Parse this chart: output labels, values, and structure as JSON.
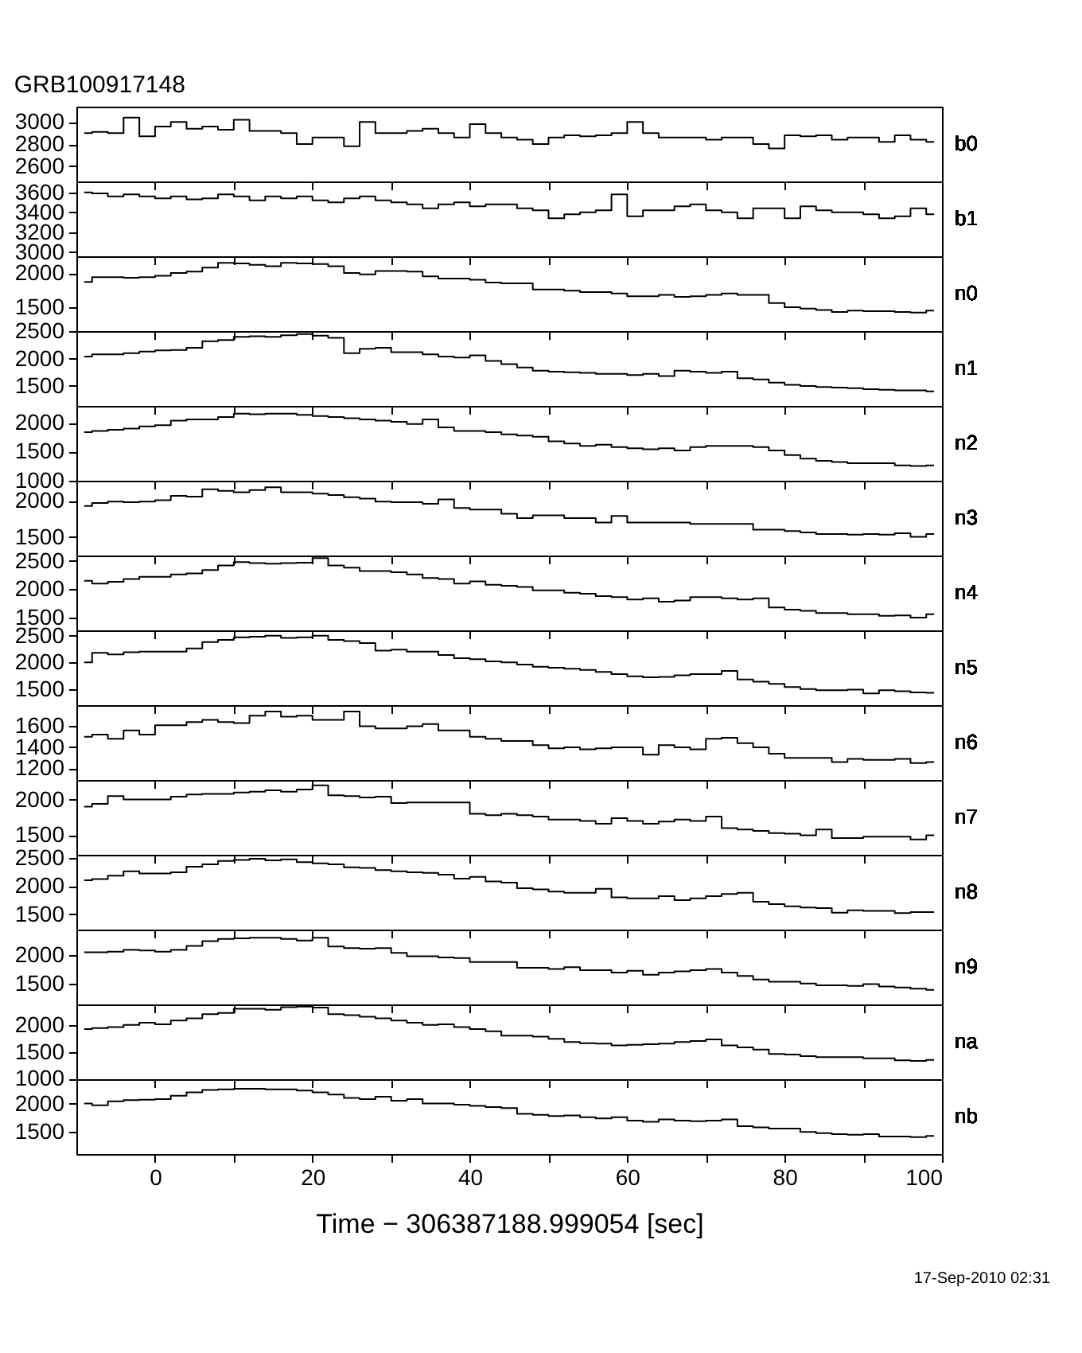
{
  "chart_data": [
    {
      "type": "step",
      "title": "GRB100917148",
      "x": [
        -9,
        -7,
        -5,
        -3,
        -1,
        1,
        3,
        5,
        7,
        9,
        11,
        13,
        15,
        17,
        19,
        21,
        23,
        25,
        27,
        29,
        31,
        33,
        35,
        37,
        39,
        41,
        43,
        45,
        47,
        49,
        51,
        53,
        55,
        57,
        59,
        61,
        63,
        65,
        67,
        69,
        71,
        73,
        75,
        77,
        79,
        81,
        83,
        85,
        87,
        89,
        91,
        93,
        95,
        97,
        99
      ],
      "xlim": [
        -10,
        100
      ],
      "xticks": [
        0,
        {
          "value": 10,
          "label": null
        },
        20,
        {
          "value": 30,
          "label": null
        },
        40,
        {
          "value": 50,
          "label": null
        },
        60,
        {
          "value": 70,
          "label": null
        },
        80,
        {
          "value": 90,
          "label": null
        },
        100
      ],
      "ylim": [
        2460,
        3140
      ],
      "yticks": [
        2600,
        2800,
        3000
      ],
      "tick_labels": "y",
      "series": [
        {
          "name": "b0",
          "color": "#000000",
          "values": [
            2900,
            2910,
            2900,
            3040,
            2870,
            2960,
            3000,
            2940,
            2960,
            2930,
            3020,
            2920,
            2920,
            2900,
            2800,
            2860,
            2860,
            2780,
            3000,
            2900,
            2900,
            2920,
            2940,
            2900,
            2860,
            2980,
            2900,
            2860,
            2840,
            2800,
            2860,
            2880,
            2870,
            2880,
            2900,
            3000,
            2900,
            2860,
            2860,
            2860,
            2840,
            2860,
            2860,
            2800,
            2760,
            2880,
            2870,
            2880,
            2840,
            2860,
            2860,
            2820,
            2880,
            2840,
            2820
          ]
        }
      ]
    },
    {
      "type": "step",
      "x": [
        -9,
        -7,
        -5,
        -3,
        -1,
        1,
        3,
        5,
        7,
        9,
        11,
        13,
        15,
        17,
        19,
        21,
        23,
        25,
        27,
        29,
        31,
        33,
        35,
        37,
        39,
        41,
        43,
        45,
        47,
        49,
        51,
        53,
        55,
        57,
        59,
        61,
        63,
        65,
        67,
        69,
        71,
        73,
        75,
        77,
        79,
        81,
        83,
        85,
        87,
        89,
        91,
        93,
        95,
        97,
        99
      ],
      "xlim": [
        -10,
        100
      ],
      "xticks": [
        0,
        {
          "value": 10,
          "label": null
        },
        20,
        {
          "value": 30,
          "label": null
        },
        40,
        {
          "value": 50,
          "label": null
        },
        60,
        {
          "value": 70,
          "label": null
        },
        80,
        {
          "value": 90,
          "label": null
        },
        100
      ],
      "ylim": [
        2960,
        3710
      ],
      "yticks": [
        3000,
        3200,
        3400,
        3600
      ],
      "tick_labels": "y",
      "series": [
        {
          "name": "b1",
          "color": "#000000",
          "values": [
            3600,
            3590,
            3560,
            3580,
            3560,
            3540,
            3560,
            3530,
            3540,
            3580,
            3560,
            3520,
            3560,
            3540,
            3560,
            3520,
            3500,
            3540,
            3560,
            3520,
            3500,
            3480,
            3440,
            3480,
            3500,
            3460,
            3480,
            3480,
            3440,
            3420,
            3340,
            3380,
            3400,
            3420,
            3580,
            3360,
            3420,
            3420,
            3460,
            3480,
            3420,
            3400,
            3340,
            3440,
            3440,
            3340,
            3460,
            3420,
            3400,
            3400,
            3380,
            3340,
            3360,
            3440,
            3380
          ]
        }
      ]
    },
    {
      "type": "step",
      "x": [
        -9,
        -7,
        -5,
        -3,
        -1,
        1,
        3,
        5,
        7,
        9,
        11,
        13,
        15,
        17,
        19,
        21,
        23,
        25,
        27,
        29,
        31,
        33,
        35,
        37,
        39,
        41,
        43,
        45,
        47,
        49,
        51,
        53,
        55,
        57,
        59,
        61,
        63,
        65,
        67,
        69,
        71,
        73,
        75,
        77,
        79,
        81,
        83,
        85,
        87,
        89,
        91,
        93,
        95,
        97,
        99
      ],
      "xlim": [
        -10,
        100
      ],
      "xticks": [
        0,
        {
          "value": 10,
          "label": null
        },
        20,
        {
          "value": 30,
          "label": null
        },
        40,
        {
          "value": 50,
          "label": null
        },
        60,
        {
          "value": 70,
          "label": null
        },
        80,
        {
          "value": 90,
          "label": null
        },
        100
      ],
      "ylim": [
        1150,
        2245
      ],
      "yticks": [
        1500,
        2000
      ],
      "tick_labels": "y",
      "series": [
        {
          "name": "n0",
          "color": "#000000",
          "values": [
            1870,
            1940,
            1940,
            1930,
            1940,
            1960,
            2000,
            2020,
            2080,
            2150,
            2140,
            2120,
            2100,
            2150,
            2140,
            2130,
            2100,
            2000,
            1980,
            2030,
            2030,
            2020,
            1950,
            1920,
            1920,
            1900,
            1860,
            1850,
            1850,
            1760,
            1760,
            1740,
            1720,
            1720,
            1700,
            1660,
            1660,
            1680,
            1650,
            1660,
            1680,
            1700,
            1680,
            1680,
            1560,
            1500,
            1480,
            1460,
            1430,
            1450,
            1440,
            1440,
            1430,
            1420,
            1450
          ]
        }
      ]
    },
    {
      "type": "step",
      "x": [
        -9,
        -7,
        -5,
        -3,
        -1,
        1,
        3,
        5,
        7,
        9,
        11,
        13,
        15,
        17,
        19,
        21,
        23,
        25,
        27,
        29,
        31,
        33,
        35,
        37,
        39,
        41,
        43,
        45,
        47,
        49,
        51,
        53,
        55,
        57,
        59,
        61,
        63,
        65,
        67,
        69,
        71,
        73,
        75,
        77,
        79,
        81,
        83,
        85,
        87,
        89,
        91,
        93,
        95,
        97,
        99
      ],
      "xlim": [
        -10,
        100
      ],
      "xticks": [
        0,
        {
          "value": 10,
          "label": null
        },
        20,
        {
          "value": 30,
          "label": null
        },
        40,
        {
          "value": 50,
          "label": null
        },
        60,
        {
          "value": 70,
          "label": null
        },
        80,
        {
          "value": 90,
          "label": null
        },
        100
      ],
      "ylim": [
        1135,
        2505
      ],
      "yticks": [
        1500,
        2000,
        2500
      ],
      "tick_labels": "y",
      "series": [
        {
          "name": "n1",
          "color": "#000000",
          "values": [
            2040,
            2080,
            2080,
            2100,
            2130,
            2150,
            2160,
            2200,
            2320,
            2340,
            2400,
            2410,
            2400,
            2430,
            2450,
            2420,
            2380,
            2100,
            2180,
            2200,
            2120,
            2120,
            2080,
            2040,
            2020,
            2060,
            1960,
            1900,
            1840,
            1780,
            1760,
            1750,
            1740,
            1720,
            1720,
            1700,
            1720,
            1680,
            1780,
            1760,
            1740,
            1760,
            1640,
            1620,
            1560,
            1520,
            1500,
            1480,
            1470,
            1460,
            1440,
            1430,
            1420,
            1420,
            1400
          ]
        }
      ]
    },
    {
      "type": "step",
      "x": [
        -9,
        -7,
        -5,
        -3,
        -1,
        1,
        3,
        5,
        7,
        9,
        11,
        13,
        15,
        17,
        19,
        21,
        23,
        25,
        27,
        29,
        31,
        33,
        35,
        37,
        39,
        41,
        43,
        45,
        47,
        49,
        51,
        53,
        55,
        57,
        59,
        61,
        63,
        65,
        67,
        69,
        71,
        73,
        75,
        77,
        79,
        81,
        83,
        85,
        87,
        89,
        91,
        93,
        95,
        97,
        99
      ],
      "xlim": [
        -10,
        100
      ],
      "xticks": [
        0,
        {
          "value": 10,
          "label": null
        },
        20,
        {
          "value": 30,
          "label": null
        },
        40,
        {
          "value": 50,
          "label": null
        },
        60,
        {
          "value": 70,
          "label": null
        },
        80,
        {
          "value": 90,
          "label": null
        },
        100
      ],
      "ylim": [
        995,
        2295
      ],
      "yticks": [
        1000,
        1500,
        2000
      ],
      "tick_labels": "y",
      "series": [
        {
          "name": "n2",
          "color": "#000000",
          "values": [
            1840,
            1860,
            1880,
            1900,
            1940,
            1960,
            2040,
            2060,
            2060,
            2100,
            2160,
            2150,
            2160,
            2160,
            2140,
            2120,
            2100,
            2080,
            2060,
            2040,
            2020,
            1980,
            2060,
            1920,
            1860,
            1860,
            1840,
            1800,
            1780,
            1760,
            1680,
            1640,
            1600,
            1620,
            1580,
            1560,
            1540,
            1560,
            1520,
            1580,
            1600,
            1600,
            1600,
            1580,
            1520,
            1440,
            1380,
            1340,
            1320,
            1300,
            1300,
            1300,
            1260,
            1250,
            1260
          ]
        }
      ]
    },
    {
      "type": "step",
      "x": [
        -9,
        -7,
        -5,
        -3,
        -1,
        1,
        3,
        5,
        7,
        9,
        11,
        13,
        15,
        17,
        19,
        21,
        23,
        25,
        27,
        29,
        31,
        33,
        35,
        37,
        39,
        41,
        43,
        45,
        47,
        49,
        51,
        53,
        55,
        57,
        59,
        61,
        63,
        65,
        67,
        69,
        71,
        73,
        75,
        77,
        79,
        81,
        83,
        85,
        87,
        89,
        91,
        93,
        95,
        97,
        99
      ],
      "xlim": [
        -10,
        100
      ],
      "xticks": [
        0,
        {
          "value": 10,
          "label": null
        },
        20,
        {
          "value": 30,
          "label": null
        },
        40,
        {
          "value": 50,
          "label": null
        },
        60,
        {
          "value": 70,
          "label": null
        },
        80,
        {
          "value": 90,
          "label": null
        },
        100
      ],
      "ylim": [
        1240,
        2280
      ],
      "yticks": [
        1500,
        2000
      ],
      "tick_labels": "y",
      "series": [
        {
          "name": "n3",
          "color": "#000000",
          "values": [
            1930,
            1970,
            1990,
            1980,
            1990,
            2010,
            2070,
            2060,
            2160,
            2140,
            2120,
            2150,
            2190,
            2120,
            2120,
            2100,
            2080,
            2050,
            2030,
            1990,
            1980,
            1980,
            1960,
            2020,
            1900,
            1880,
            1880,
            1820,
            1760,
            1800,
            1800,
            1760,
            1760,
            1700,
            1790,
            1700,
            1700,
            1700,
            1700,
            1680,
            1680,
            1680,
            1680,
            1600,
            1600,
            1580,
            1560,
            1540,
            1540,
            1530,
            1540,
            1530,
            1550,
            1500,
            1540
          ]
        }
      ]
    },
    {
      "type": "step",
      "x": [
        -9,
        -7,
        -5,
        -3,
        -1,
        1,
        3,
        5,
        7,
        9,
        11,
        13,
        15,
        17,
        19,
        21,
        23,
        25,
        27,
        29,
        31,
        33,
        35,
        37,
        39,
        41,
        43,
        45,
        47,
        49,
        51,
        53,
        55,
        57,
        59,
        61,
        63,
        65,
        67,
        69,
        71,
        73,
        75,
        77,
        79,
        81,
        83,
        85,
        87,
        89,
        91,
        93,
        95,
        97,
        99
      ],
      "xlim": [
        -10,
        100
      ],
      "xticks": [
        0,
        {
          "value": 10,
          "label": null
        },
        20,
        {
          "value": 30,
          "label": null
        },
        40,
        {
          "value": 50,
          "label": null
        },
        60,
        {
          "value": 70,
          "label": null
        },
        80,
        {
          "value": 90,
          "label": null
        },
        100
      ],
      "ylim": [
        1275,
        2595
      ],
      "yticks": [
        1500,
        2000,
        2500
      ],
      "tick_labels": "y",
      "series": [
        {
          "name": "n4",
          "color": "#000000",
          "values": [
            2150,
            2100,
            2130,
            2180,
            2220,
            2220,
            2260,
            2280,
            2340,
            2420,
            2480,
            2460,
            2450,
            2460,
            2470,
            2550,
            2420,
            2380,
            2320,
            2320,
            2300,
            2260,
            2200,
            2180,
            2100,
            2140,
            2080,
            2060,
            2040,
            1980,
            1980,
            1940,
            1920,
            1880,
            1860,
            1820,
            1840,
            1780,
            1800,
            1860,
            1860,
            1840,
            1820,
            1840,
            1680,
            1640,
            1620,
            1580,
            1580,
            1560,
            1560,
            1530,
            1540,
            1500,
            1560
          ]
        }
      ]
    },
    {
      "type": "step",
      "x": [
        -9,
        -7,
        -5,
        -3,
        -1,
        1,
        3,
        5,
        7,
        9,
        11,
        13,
        15,
        17,
        19,
        21,
        23,
        25,
        27,
        29,
        31,
        33,
        35,
        37,
        39,
        41,
        43,
        45,
        47,
        49,
        51,
        53,
        55,
        57,
        59,
        61,
        63,
        65,
        67,
        69,
        71,
        73,
        75,
        77,
        79,
        81,
        83,
        85,
        87,
        89,
        91,
        93,
        95,
        97,
        99
      ],
      "xlim": [
        -10,
        100
      ],
      "xticks": [
        0,
        {
          "value": 10,
          "label": null
        },
        20,
        {
          "value": 30,
          "label": null
        },
        40,
        {
          "value": 50,
          "label": null
        },
        60,
        {
          "value": 70,
          "label": null
        },
        80,
        {
          "value": 90,
          "label": null
        },
        100
      ],
      "ylim": [
        1200,
        2600
      ],
      "yticks": [
        1500,
        2000,
        2500
      ],
      "tick_labels": "y",
      "series": [
        {
          "name": "n5",
          "color": "#000000",
          "values": [
            2000,
            2180,
            2150,
            2190,
            2200,
            2200,
            2200,
            2260,
            2380,
            2420,
            2470,
            2480,
            2500,
            2460,
            2470,
            2500,
            2420,
            2400,
            2360,
            2220,
            2240,
            2200,
            2200,
            2140,
            2080,
            2060,
            2020,
            2000,
            1960,
            1920,
            1900,
            1880,
            1860,
            1820,
            1780,
            1740,
            1720,
            1730,
            1760,
            1780,
            1780,
            1840,
            1680,
            1640,
            1600,
            1540,
            1500,
            1480,
            1480,
            1490,
            1420,
            1480,
            1460,
            1440,
            1430
          ]
        }
      ]
    },
    {
      "type": "step",
      "x": [
        -9,
        -7,
        -5,
        -3,
        -1,
        1,
        3,
        5,
        7,
        9,
        11,
        13,
        15,
        17,
        19,
        21,
        23,
        25,
        27,
        29,
        31,
        33,
        35,
        37,
        39,
        41,
        43,
        45,
        47,
        49,
        51,
        53,
        55,
        57,
        59,
        61,
        63,
        65,
        67,
        69,
        71,
        73,
        75,
        77,
        79,
        81,
        83,
        85,
        87,
        89,
        91,
        93,
        95,
        97,
        99
      ],
      "xlim": [
        -10,
        100
      ],
      "xticks": [
        0,
        {
          "value": 10,
          "label": null
        },
        20,
        {
          "value": 30,
          "label": null
        },
        40,
        {
          "value": 50,
          "label": null
        },
        60,
        {
          "value": 70,
          "label": null
        },
        80,
        {
          "value": 90,
          "label": null
        },
        100
      ],
      "ylim": [
        1090,
        1800
      ],
      "yticks": [
        1200,
        1400,
        1600
      ],
      "tick_labels": "y",
      "series": [
        {
          "name": "n6",
          "color": "#000000",
          "values": [
            1500,
            1520,
            1480,
            1560,
            1520,
            1610,
            1610,
            1640,
            1660,
            1640,
            1630,
            1700,
            1740,
            1690,
            1700,
            1660,
            1660,
            1740,
            1600,
            1580,
            1580,
            1600,
            1620,
            1560,
            1560,
            1500,
            1480,
            1460,
            1460,
            1420,
            1390,
            1400,
            1380,
            1390,
            1400,
            1400,
            1330,
            1420,
            1400,
            1380,
            1480,
            1490,
            1440,
            1400,
            1340,
            1300,
            1300,
            1300,
            1260,
            1290,
            1280,
            1280,
            1290,
            1250,
            1260
          ]
        }
      ]
    },
    {
      "type": "step",
      "x": [
        -9,
        -7,
        -5,
        -3,
        -1,
        1,
        3,
        5,
        7,
        9,
        11,
        13,
        15,
        17,
        19,
        21,
        23,
        25,
        27,
        29,
        31,
        33,
        35,
        37,
        39,
        41,
        43,
        45,
        47,
        49,
        51,
        53,
        55,
        57,
        59,
        61,
        63,
        65,
        67,
        69,
        71,
        73,
        75,
        77,
        79,
        81,
        83,
        85,
        87,
        89,
        91,
        93,
        95,
        97,
        99
      ],
      "xlim": [
        -10,
        100
      ],
      "xticks": [
        0,
        {
          "value": 10,
          "label": null
        },
        20,
        {
          "value": 30,
          "label": null
        },
        40,
        {
          "value": 50,
          "label": null
        },
        60,
        {
          "value": 70,
          "label": null
        },
        80,
        {
          "value": 90,
          "label": null
        },
        100
      ],
      "ylim": [
        1225,
        2275
      ],
      "yticks": [
        1500,
        2000
      ],
      "tick_labels": "y",
      "series": [
        {
          "name": "n7",
          "color": "#000000",
          "values": [
            1900,
            1940,
            2050,
            2000,
            2000,
            2000,
            2040,
            2070,
            2080,
            2080,
            2100,
            2110,
            2130,
            2110,
            2140,
            2200,
            2060,
            2050,
            2030,
            2040,
            1950,
            1960,
            1960,
            1960,
            1960,
            1800,
            1780,
            1800,
            1780,
            1760,
            1720,
            1720,
            1700,
            1660,
            1740,
            1700,
            1660,
            1690,
            1720,
            1700,
            1760,
            1600,
            1580,
            1560,
            1530,
            1520,
            1500,
            1580,
            1460,
            1460,
            1480,
            1480,
            1480,
            1440,
            1500
          ]
        }
      ]
    },
    {
      "type": "step",
      "x": [
        -9,
        -7,
        -5,
        -3,
        -1,
        1,
        3,
        5,
        7,
        9,
        11,
        13,
        15,
        17,
        19,
        21,
        23,
        25,
        27,
        29,
        31,
        33,
        35,
        37,
        39,
        41,
        43,
        45,
        47,
        49,
        51,
        53,
        55,
        57,
        59,
        61,
        63,
        65,
        67,
        69,
        71,
        73,
        75,
        77,
        79,
        81,
        83,
        85,
        87,
        89,
        91,
        93,
        95,
        97,
        99
      ],
      "xlim": [
        -10,
        100
      ],
      "xticks": [
        0,
        {
          "value": 10,
          "label": null
        },
        20,
        {
          "value": 30,
          "label": null
        },
        40,
        {
          "value": 50,
          "label": null
        },
        60,
        {
          "value": 70,
          "label": null
        },
        80,
        {
          "value": 90,
          "label": null
        },
        100
      ],
      "ylim": [
        1230,
        2550
      ],
      "yticks": [
        1500,
        2000,
        2500
      ],
      "tick_labels": "y",
      "series": [
        {
          "name": "n8",
          "color": "#000000",
          "values": [
            2100,
            2120,
            2180,
            2260,
            2220,
            2220,
            2240,
            2340,
            2380,
            2440,
            2460,
            2480,
            2450,
            2470,
            2420,
            2400,
            2380,
            2330,
            2320,
            2280,
            2260,
            2240,
            2230,
            2200,
            2130,
            2160,
            2080,
            2060,
            1960,
            1940,
            1900,
            1880,
            1880,
            1950,
            1800,
            1780,
            1780,
            1820,
            1750,
            1780,
            1820,
            1860,
            1880,
            1720,
            1680,
            1640,
            1620,
            1610,
            1530,
            1570,
            1560,
            1560,
            1520,
            1540,
            1540
          ]
        }
      ]
    },
    {
      "type": "step",
      "x": [
        -9,
        -7,
        -5,
        -3,
        -1,
        1,
        3,
        5,
        7,
        9,
        11,
        13,
        15,
        17,
        19,
        21,
        23,
        25,
        27,
        29,
        31,
        33,
        35,
        37,
        39,
        41,
        43,
        45,
        47,
        49,
        51,
        53,
        55,
        57,
        59,
        61,
        63,
        65,
        67,
        69,
        71,
        73,
        75,
        77,
        79,
        81,
        83,
        85,
        87,
        89,
        91,
        93,
        95,
        97,
        99
      ],
      "xlim": [
        -10,
        100
      ],
      "xticks": [
        0,
        {
          "value": 10,
          "label": null
        },
        20,
        {
          "value": 30,
          "label": null
        },
        40,
        {
          "value": 50,
          "label": null
        },
        60,
        {
          "value": 70,
          "label": null
        },
        80,
        {
          "value": 90,
          "label": null
        },
        100
      ],
      "ylim": [
        1150,
        2440
      ],
      "yticks": [
        1500,
        2000
      ],
      "tick_labels": "y",
      "series": [
        {
          "name": "n9",
          "color": "#000000",
          "values": [
            2050,
            2050,
            2060,
            2090,
            2080,
            2060,
            2090,
            2160,
            2240,
            2280,
            2290,
            2300,
            2300,
            2280,
            2250,
            2300,
            2150,
            2120,
            2110,
            2120,
            2040,
            1980,
            1980,
            1960,
            1950,
            1880,
            1880,
            1880,
            1780,
            1780,
            1760,
            1790,
            1740,
            1740,
            1700,
            1730,
            1660,
            1700,
            1720,
            1740,
            1760,
            1700,
            1640,
            1580,
            1540,
            1540,
            1510,
            1480,
            1480,
            1470,
            1500,
            1460,
            1440,
            1420,
            1400
          ]
        }
      ]
    },
    {
      "type": "step",
      "x": [
        -9,
        -7,
        -5,
        -3,
        -1,
        1,
        3,
        5,
        7,
        9,
        11,
        13,
        15,
        17,
        19,
        21,
        23,
        25,
        27,
        29,
        31,
        33,
        35,
        37,
        39,
        41,
        43,
        45,
        47,
        49,
        51,
        53,
        55,
        57,
        59,
        61,
        63,
        65,
        67,
        69,
        71,
        73,
        75,
        77,
        79,
        81,
        83,
        85,
        87,
        89,
        91,
        93,
        95,
        97,
        99
      ],
      "xlim": [
        -10,
        100
      ],
      "xticks": [
        0,
        {
          "value": 10,
          "label": null
        },
        20,
        {
          "value": 30,
          "label": null
        },
        40,
        {
          "value": 50,
          "label": null
        },
        60,
        {
          "value": 70,
          "label": null
        },
        80,
        {
          "value": 90,
          "label": null
        },
        100
      ],
      "ylim": [
        990,
        2380
      ],
      "yticks": [
        1000,
        1500,
        2000
      ],
      "tick_labels": "y",
      "series": [
        {
          "name": "na",
          "color": "#000000",
          "values": [
            1920,
            1940,
            1960,
            2000,
            2040,
            2010,
            2080,
            2120,
            2200,
            2220,
            2300,
            2300,
            2280,
            2330,
            2340,
            2320,
            2200,
            2180,
            2150,
            2120,
            2080,
            2040,
            2000,
            2010,
            1960,
            1920,
            1880,
            1800,
            1800,
            1780,
            1740,
            1680,
            1660,
            1650,
            1620,
            1630,
            1640,
            1650,
            1680,
            1700,
            1730,
            1620,
            1580,
            1540,
            1460,
            1450,
            1420,
            1400,
            1400,
            1400,
            1380,
            1380,
            1340,
            1330,
            1350
          ]
        }
      ]
    },
    {
      "type": "step",
      "xlabel": "Time − 306387188.999054 [sec]",
      "annotations": [
        "17-Sep-2010 02:31"
      ],
      "x": [
        -9,
        -7,
        -5,
        -3,
        -1,
        1,
        3,
        5,
        7,
        9,
        11,
        13,
        15,
        17,
        19,
        21,
        23,
        25,
        27,
        29,
        31,
        33,
        35,
        37,
        39,
        41,
        43,
        45,
        47,
        49,
        51,
        53,
        55,
        57,
        59,
        61,
        63,
        65,
        67,
        69,
        71,
        73,
        75,
        77,
        79,
        81,
        83,
        85,
        87,
        89,
        91,
        93,
        95,
        97,
        99
      ],
      "xlim": [
        -10,
        100
      ],
      "xticks": [
        0,
        {
          "value": 10,
          "label": null
        },
        20,
        {
          "value": 30,
          "label": null
        },
        40,
        {
          "value": 50,
          "label": null
        },
        60,
        {
          "value": 70,
          "label": null
        },
        80,
        {
          "value": 90,
          "label": null
        },
        100
      ],
      "ylim": [
        1110,
        2430
      ],
      "yticks": [
        1500,
        2000
      ],
      "series": [
        {
          "name": "nb",
          "color": "#000000",
          "values": [
            2000,
            1970,
            2040,
            2060,
            2070,
            2080,
            2140,
            2200,
            2240,
            2250,
            2260,
            2260,
            2250,
            2250,
            2230,
            2200,
            2160,
            2100,
            2080,
            2120,
            2050,
            2080,
            2000,
            2000,
            1980,
            1960,
            1940,
            1920,
            1820,
            1800,
            1780,
            1790,
            1760,
            1740,
            1760,
            1700,
            1680,
            1720,
            1700,
            1690,
            1700,
            1720,
            1600,
            1580,
            1560,
            1560,
            1500,
            1480,
            1460,
            1450,
            1460,
            1420,
            1420,
            1410,
            1430
          ]
        }
      ]
    }
  ]
}
